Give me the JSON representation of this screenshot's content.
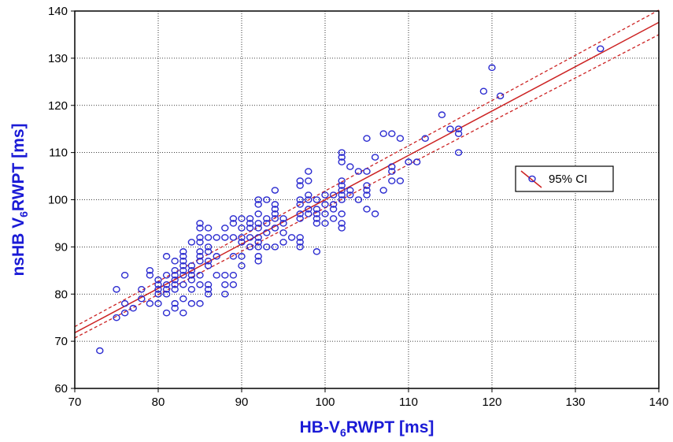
{
  "chart_data": {
    "type": "scatter",
    "title": "",
    "xlabel": {
      "pre": "HB-V",
      "sub": "6",
      "post": "RWPT [ms]"
    },
    "ylabel": {
      "pre": "nsHB V",
      "sub": "6",
      "post": "RWPT [ms]"
    },
    "xlim": [
      70,
      140
    ],
    "ylim": [
      60,
      140
    ],
    "x_ticks": [
      70,
      80,
      90,
      100,
      110,
      120,
      130,
      140
    ],
    "y_ticks": [
      60,
      70,
      80,
      90,
      100,
      110,
      120,
      130,
      140
    ],
    "grid": true,
    "legend": {
      "position": "right",
      "label": "95% CI"
    },
    "fit_line": {
      "slope": 0.94,
      "intercept": 6.0
    },
    "ci_band": {
      "lower_at_70": 70.7,
      "upper_at_70": 73.1,
      "lower_at_140": 135.0,
      "upper_at_140": 140.2
    },
    "colors": {
      "points": "#2b2bd0",
      "fit": "#cc2222",
      "axis_title": "#1a1ad6"
    },
    "points": [
      [
        73,
        68
      ],
      [
        75,
        75
      ],
      [
        75,
        81
      ],
      [
        76,
        76
      ],
      [
        76,
        78
      ],
      [
        76,
        84
      ],
      [
        77,
        77
      ],
      [
        78,
        79
      ],
      [
        78,
        81
      ],
      [
        79,
        78
      ],
      [
        79,
        84
      ],
      [
        79,
        85
      ],
      [
        80,
        78
      ],
      [
        80,
        80
      ],
      [
        80,
        81
      ],
      [
        80,
        82
      ],
      [
        80,
        83
      ],
      [
        81,
        76
      ],
      [
        81,
        80
      ],
      [
        81,
        81
      ],
      [
        81,
        82
      ],
      [
        81,
        84
      ],
      [
        81,
        88
      ],
      [
        82,
        77
      ],
      [
        82,
        78
      ],
      [
        82,
        81
      ],
      [
        82,
        82
      ],
      [
        82,
        83
      ],
      [
        82,
        84
      ],
      [
        82,
        85
      ],
      [
        82,
        87
      ],
      [
        83,
        76
      ],
      [
        83,
        79
      ],
      [
        83,
        82
      ],
      [
        83,
        84
      ],
      [
        83,
        85
      ],
      [
        83,
        86
      ],
      [
        83,
        87
      ],
      [
        83,
        88
      ],
      [
        83,
        89
      ],
      [
        84,
        78
      ],
      [
        84,
        81
      ],
      [
        84,
        83
      ],
      [
        84,
        84
      ],
      [
        84,
        85
      ],
      [
        84,
        86
      ],
      [
        84,
        91
      ],
      [
        85,
        78
      ],
      [
        85,
        82
      ],
      [
        85,
        84
      ],
      [
        85,
        87
      ],
      [
        85,
        88
      ],
      [
        85,
        89
      ],
      [
        85,
        91
      ],
      [
        85,
        92
      ],
      [
        85,
        94
      ],
      [
        85,
        95
      ],
      [
        86,
        80
      ],
      [
        86,
        81
      ],
      [
        86,
        82
      ],
      [
        86,
        86
      ],
      [
        86,
        87
      ],
      [
        86,
        89
      ],
      [
        86,
        90
      ],
      [
        86,
        92
      ],
      [
        86,
        94
      ],
      [
        87,
        84
      ],
      [
        87,
        88
      ],
      [
        87,
        92
      ],
      [
        88,
        80
      ],
      [
        88,
        82
      ],
      [
        88,
        84
      ],
      [
        88,
        92
      ],
      [
        88,
        94
      ],
      [
        89,
        82
      ],
      [
        89,
        84
      ],
      [
        89,
        88
      ],
      [
        89,
        92
      ],
      [
        89,
        95
      ],
      [
        89,
        96
      ],
      [
        90,
        86
      ],
      [
        90,
        88
      ],
      [
        90,
        91
      ],
      [
        90,
        92
      ],
      [
        90,
        94
      ],
      [
        90,
        96
      ],
      [
        91,
        90
      ],
      [
        91,
        92
      ],
      [
        91,
        94
      ],
      [
        91,
        95
      ],
      [
        91,
        96
      ],
      [
        92,
        87
      ],
      [
        92,
        88
      ],
      [
        92,
        90
      ],
      [
        92,
        91
      ],
      [
        92,
        92
      ],
      [
        92,
        94
      ],
      [
        92,
        95
      ],
      [
        92,
        97
      ],
      [
        92,
        99
      ],
      [
        92,
        100
      ],
      [
        93,
        90
      ],
      [
        93,
        93
      ],
      [
        93,
        95
      ],
      [
        93,
        96
      ],
      [
        93,
        100
      ],
      [
        94,
        90
      ],
      [
        94,
        94
      ],
      [
        94,
        96
      ],
      [
        94,
        97
      ],
      [
        94,
        98
      ],
      [
        94,
        99
      ],
      [
        94,
        102
      ],
      [
        95,
        91
      ],
      [
        95,
        93
      ],
      [
        95,
        95
      ],
      [
        95,
        96
      ],
      [
        96,
        92
      ],
      [
        97,
        90
      ],
      [
        97,
        91
      ],
      [
        97,
        92
      ],
      [
        97,
        96
      ],
      [
        97,
        97
      ],
      [
        97,
        99
      ],
      [
        97,
        100
      ],
      [
        97,
        103
      ],
      [
        97,
        104
      ],
      [
        98,
        97
      ],
      [
        98,
        98
      ],
      [
        98,
        100
      ],
      [
        98,
        101
      ],
      [
        98,
        104
      ],
      [
        98,
        106
      ],
      [
        99,
        89
      ],
      [
        99,
        95
      ],
      [
        99,
        96
      ],
      [
        99,
        97
      ],
      [
        99,
        98
      ],
      [
        99,
        100
      ],
      [
        100,
        95
      ],
      [
        100,
        97
      ],
      [
        100,
        99
      ],
      [
        100,
        101
      ],
      [
        101,
        96
      ],
      [
        101,
        98
      ],
      [
        101,
        99
      ],
      [
        101,
        101
      ],
      [
        102,
        94
      ],
      [
        102,
        95
      ],
      [
        102,
        97
      ],
      [
        102,
        100
      ],
      [
        102,
        101
      ],
      [
        102,
        102
      ],
      [
        102,
        103
      ],
      [
        102,
        104
      ],
      [
        102,
        108
      ],
      [
        102,
        109
      ],
      [
        102,
        110
      ],
      [
        103,
        101
      ],
      [
        103,
        102
      ],
      [
        103,
        107
      ],
      [
        104,
        100
      ],
      [
        104,
        106
      ],
      [
        105,
        98
      ],
      [
        105,
        101
      ],
      [
        105,
        102
      ],
      [
        105,
        103
      ],
      [
        105,
        106
      ],
      [
        105,
        113
      ],
      [
        106,
        97
      ],
      [
        106,
        109
      ],
      [
        107,
        102
      ],
      [
        107,
        114
      ],
      [
        108,
        104
      ],
      [
        108,
        106
      ],
      [
        108,
        107
      ],
      [
        108,
        114
      ],
      [
        109,
        104
      ],
      [
        109,
        113
      ],
      [
        110,
        108
      ],
      [
        111,
        108
      ],
      [
        112,
        113
      ],
      [
        114,
        118
      ],
      [
        115,
        115
      ],
      [
        116,
        110
      ],
      [
        116,
        114
      ],
      [
        116,
        115
      ],
      [
        119,
        123
      ],
      [
        120,
        128
      ],
      [
        121,
        122
      ],
      [
        133,
        132
      ]
    ]
  }
}
